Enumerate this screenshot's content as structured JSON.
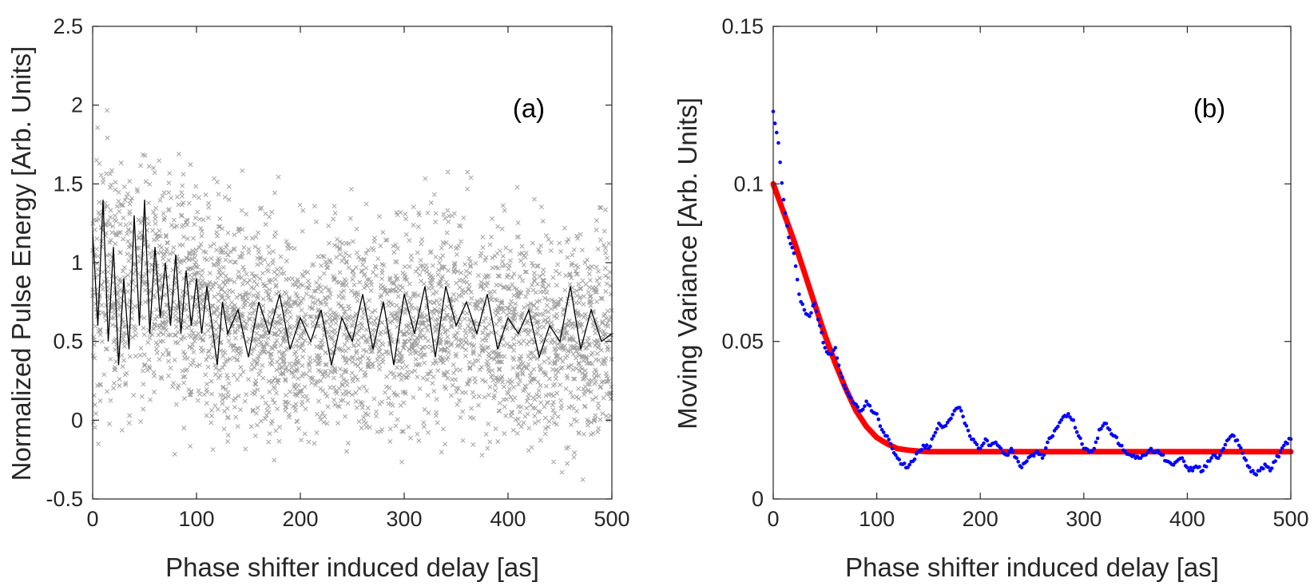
{
  "chart_data": [
    {
      "type": "scatter",
      "panel_label": "(a)",
      "xlabel": "Phase shifter induced delay [as]",
      "ylabel": "Normalized Pulse Energy [Arb. Units]",
      "xlim": [
        0,
        500
      ],
      "ylim": [
        -0.5,
        2.5
      ],
      "xticks": [
        0,
        100,
        200,
        300,
        400,
        500
      ],
      "yticks": [
        -0.5,
        0,
        0.5,
        1,
        1.5,
        2,
        2.5
      ],
      "xtick_labels": [
        "0",
        "100",
        "200",
        "300",
        "400",
        "500"
      ],
      "ytick_labels": [
        "-0.5",
        "0",
        "0.5",
        "1",
        "1.5",
        "2",
        "2.5"
      ],
      "grid": false,
      "series": [
        {
          "style": "gray x markers (individual shots)",
          "color": "#a0a0a0",
          "trend": {
            "x": [
              0,
              10,
              30,
              50,
              80,
              110,
              150,
              200,
              250,
              300,
              350,
              400,
              450,
              500
            ],
            "mean": [
              0.85,
              0.9,
              0.85,
              0.88,
              0.78,
              0.72,
              0.62,
              0.56,
              0.56,
              0.62,
              0.64,
              0.58,
              0.54,
              0.52
            ],
            "spread": [
              0.42,
              0.44,
              0.4,
              0.38,
              0.36,
              0.34,
              0.32,
              0.32,
              0.32,
              0.33,
              0.33,
              0.33,
              0.35,
              0.36
            ]
          }
        },
        {
          "style": "black line (shot average)",
          "color": "#000000",
          "x": [
            0,
            5,
            10,
            15,
            20,
            25,
            30,
            35,
            40,
            45,
            50,
            55,
            60,
            65,
            70,
            75,
            80,
            85,
            90,
            95,
            100,
            105,
            110,
            115,
            120,
            125,
            130,
            140,
            150,
            160,
            170,
            180,
            190,
            200,
            210,
            220,
            230,
            240,
            250,
            260,
            270,
            280,
            290,
            300,
            310,
            320,
            330,
            340,
            350,
            360,
            370,
            380,
            390,
            400,
            410,
            420,
            430,
            440,
            450,
            460,
            470,
            480,
            490,
            500
          ],
          "y": [
            1.2,
            0.6,
            1.4,
            0.5,
            1.1,
            0.35,
            0.9,
            0.45,
            1.3,
            0.6,
            1.4,
            0.55,
            1.1,
            0.65,
            1.0,
            0.6,
            1.05,
            0.55,
            0.95,
            0.6,
            0.9,
            0.55,
            0.85,
            0.6,
            0.35,
            0.75,
            0.55,
            0.7,
            0.4,
            0.75,
            0.55,
            0.8,
            0.45,
            0.65,
            0.5,
            0.7,
            0.35,
            0.65,
            0.5,
            0.8,
            0.45,
            0.75,
            0.35,
            0.8,
            0.55,
            0.85,
            0.4,
            0.85,
            0.6,
            0.75,
            0.55,
            0.8,
            0.45,
            0.65,
            0.55,
            0.7,
            0.4,
            0.6,
            0.5,
            0.85,
            0.45,
            0.7,
            0.5,
            0.55
          ]
        }
      ]
    },
    {
      "type": "scatter",
      "panel_label": "(b)",
      "xlabel": "Phase shifter induced delay [as]",
      "ylabel": "Moving Variance [Arb. Units]",
      "xlim": [
        0,
        500
      ],
      "ylim": [
        0,
        0.15
      ],
      "xticks": [
        0,
        100,
        200,
        300,
        400,
        500
      ],
      "yticks": [
        0,
        0.05,
        0.1,
        0.15
      ],
      "xtick_labels": [
        "0",
        "100",
        "200",
        "300",
        "400",
        "500"
      ],
      "ytick_labels": [
        "0",
        "0.05",
        "0.1",
        "0.15"
      ],
      "grid": false,
      "series": [
        {
          "style": "blue dots (moving variance)",
          "color": "#0000ff",
          "x": [
            0,
            5,
            10,
            15,
            20,
            25,
            30,
            35,
            40,
            45,
            50,
            55,
            60,
            65,
            70,
            75,
            80,
            85,
            90,
            95,
            100,
            105,
            110,
            115,
            120,
            125,
            130,
            135,
            140,
            145,
            150,
            155,
            160,
            165,
            170,
            175,
            180,
            185,
            190,
            195,
            200,
            205,
            210,
            215,
            220,
            225,
            230,
            235,
            240,
            245,
            250,
            255,
            260,
            265,
            270,
            275,
            280,
            285,
            290,
            295,
            300,
            305,
            310,
            315,
            320,
            325,
            330,
            335,
            340,
            345,
            350,
            355,
            360,
            365,
            370,
            375,
            380,
            385,
            390,
            395,
            400,
            405,
            410,
            415,
            420,
            425,
            430,
            435,
            440,
            445,
            450,
            455,
            460,
            465,
            470,
            475,
            480,
            485,
            490,
            495,
            500
          ],
          "y": [
            0.123,
            0.113,
            0.095,
            0.083,
            0.078,
            0.065,
            0.06,
            0.058,
            0.062,
            0.055,
            0.048,
            0.046,
            0.048,
            0.04,
            0.035,
            0.032,
            0.03,
            0.028,
            0.031,
            0.028,
            0.027,
            0.022,
            0.02,
            0.016,
            0.013,
            0.011,
            0.01,
            0.012,
            0.015,
            0.017,
            0.016,
            0.02,
            0.024,
            0.023,
            0.025,
            0.028,
            0.029,
            0.024,
            0.02,
            0.018,
            0.016,
            0.019,
            0.017,
            0.018,
            0.016,
            0.014,
            0.016,
            0.013,
            0.01,
            0.012,
            0.014,
            0.015,
            0.013,
            0.018,
            0.02,
            0.023,
            0.026,
            0.027,
            0.025,
            0.02,
            0.016,
            0.015,
            0.016,
            0.022,
            0.024,
            0.022,
            0.02,
            0.017,
            0.015,
            0.014,
            0.013,
            0.013,
            0.014,
            0.016,
            0.015,
            0.014,
            0.012,
            0.011,
            0.012,
            0.013,
            0.01,
            0.009,
            0.01,
            0.009,
            0.012,
            0.014,
            0.013,
            0.016,
            0.019,
            0.02,
            0.017,
            0.013,
            0.01,
            0.008,
            0.009,
            0.011,
            0.009,
            0.012,
            0.015,
            0.018,
            0.019
          ]
        },
        {
          "style": "red fitted curve",
          "color": "#ff0000",
          "x": [
            0,
            10,
            20,
            30,
            40,
            50,
            60,
            70,
            80,
            90,
            100,
            110,
            120,
            130,
            140,
            150,
            175,
            200,
            250,
            300,
            350,
            400,
            450,
            500
          ],
          "y": [
            0.1,
            0.091,
            0.082,
            0.072,
            0.062,
            0.052,
            0.043,
            0.035,
            0.028,
            0.023,
            0.0195,
            0.0175,
            0.016,
            0.0155,
            0.0152,
            0.015,
            0.015,
            0.015,
            0.015,
            0.015,
            0.015,
            0.015,
            0.015,
            0.015
          ]
        }
      ]
    }
  ]
}
